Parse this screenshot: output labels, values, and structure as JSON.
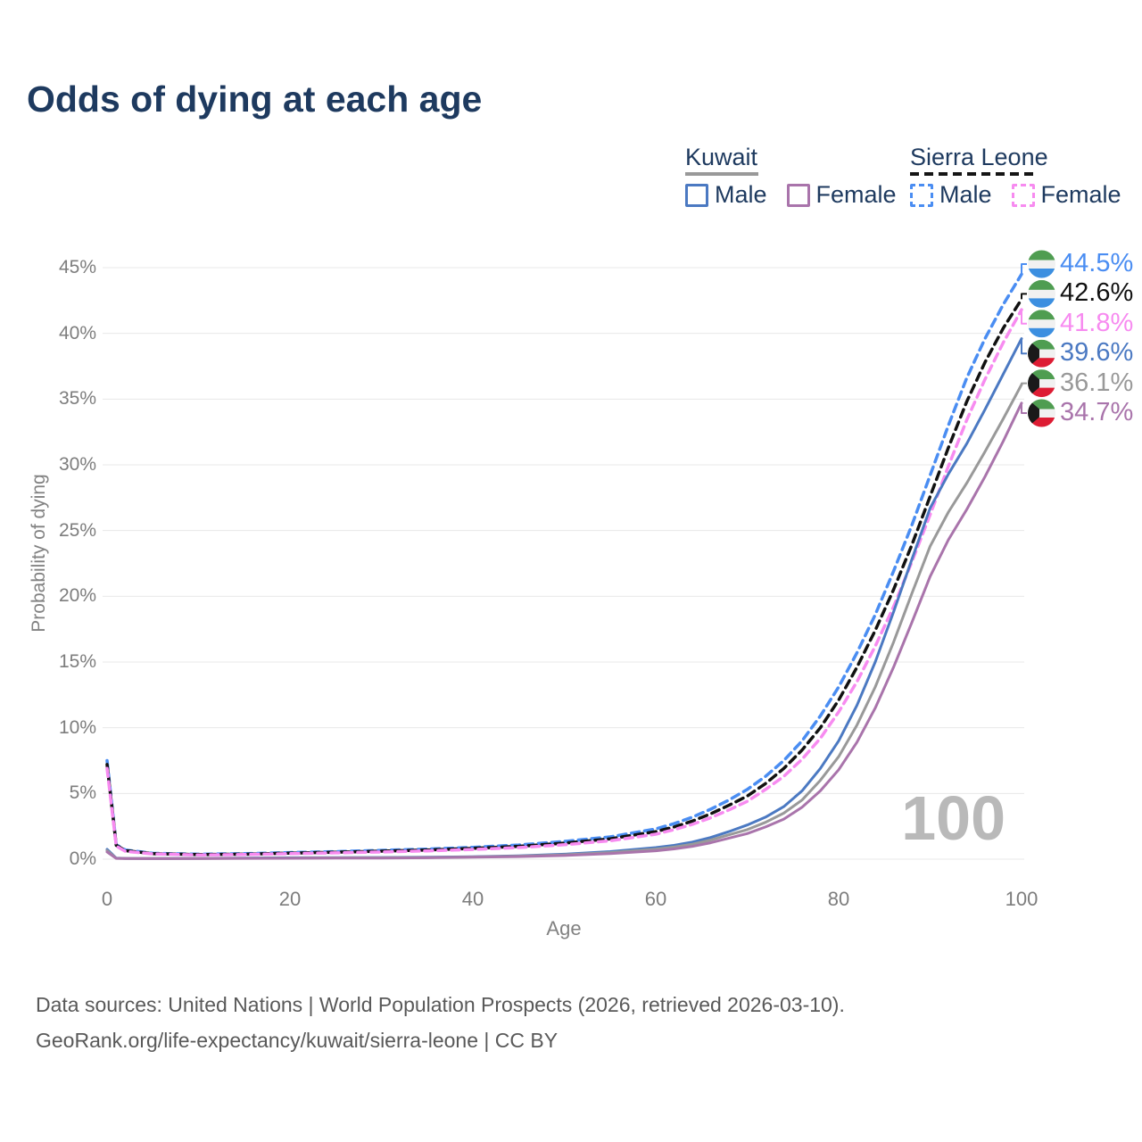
{
  "title": "Odds of dying at each age",
  "legend": {
    "groups": [
      {
        "country": "Kuwait",
        "line_style": "solid",
        "line_color": "#999999",
        "items": [
          {
            "label": "Male",
            "color": "#4b79c2"
          },
          {
            "label": "Female",
            "color": "#a974ab"
          }
        ]
      },
      {
        "country": "Sierra Leone",
        "line_style": "dashed",
        "line_color": "#1a1a1a",
        "items": [
          {
            "label": "Male",
            "color": "#4a8df2"
          },
          {
            "label": "Female",
            "color": "#f78bf0"
          }
        ]
      }
    ]
  },
  "chart_data": {
    "type": "line",
    "title": "Odds of dying at each age",
    "xlabel": "Age",
    "ylabel": "Probability of dying",
    "xlim": [
      0,
      100
    ],
    "ylim": [
      0,
      45
    ],
    "grid": true,
    "x_ticks": [
      "0",
      "20",
      "40",
      "60",
      "80",
      "100"
    ],
    "y_ticks": [
      "0%",
      "5%",
      "10%",
      "15%",
      "20%",
      "25%",
      "30%",
      "35%",
      "40%",
      "45%"
    ],
    "watermark": "100",
    "x": [
      0,
      1,
      2,
      5,
      10,
      15,
      20,
      25,
      30,
      35,
      40,
      45,
      50,
      55,
      60,
      62,
      64,
      66,
      68,
      70,
      72,
      74,
      76,
      78,
      80,
      82,
      84,
      86,
      88,
      90,
      92,
      94,
      96,
      98,
      100
    ],
    "series": [
      {
        "name": "Sierra Leone Male",
        "country": "Sierra Leone",
        "sex": "Male",
        "color": "#4a8df2",
        "line": "dashed",
        "flag": "sierra-leone",
        "end_label": "44.5%",
        "values": [
          7.5,
          1.1,
          0.7,
          0.45,
          0.38,
          0.42,
          0.5,
          0.58,
          0.67,
          0.77,
          0.9,
          1.08,
          1.35,
          1.7,
          2.3,
          2.7,
          3.2,
          3.8,
          4.5,
          5.3,
          6.3,
          7.5,
          9.0,
          10.9,
          13.1,
          15.7,
          18.6,
          21.9,
          25.4,
          29.2,
          33.0,
          36.6,
          39.6,
          42.2,
          44.5
        ]
      },
      {
        "name": "Sierra Leone Both sexes",
        "country": "Sierra Leone",
        "sex": "Both",
        "color": "#111111",
        "line": "dashed",
        "flag": "sierra-leone",
        "end_label": "42.6%",
        "values": [
          7.2,
          1.05,
          0.65,
          0.42,
          0.35,
          0.38,
          0.46,
          0.53,
          0.61,
          0.7,
          0.82,
          0.98,
          1.22,
          1.55,
          2.1,
          2.45,
          2.9,
          3.45,
          4.1,
          4.8,
          5.75,
          6.9,
          8.3,
          10.0,
          12.1,
          14.6,
          17.4,
          20.5,
          23.9,
          27.6,
          31.3,
          34.8,
          37.8,
          40.4,
          42.6
        ]
      },
      {
        "name": "Sierra Leone Female",
        "country": "Sierra Leone",
        "sex": "Female",
        "color": "#f78bf0",
        "line": "dashed",
        "flag": "sierra-leone",
        "end_label": "41.8%",
        "values": [
          6.9,
          1.0,
          0.6,
          0.4,
          0.32,
          0.35,
          0.42,
          0.48,
          0.55,
          0.63,
          0.74,
          0.88,
          1.1,
          1.4,
          1.9,
          2.25,
          2.65,
          3.15,
          3.75,
          4.4,
          5.3,
          6.3,
          7.6,
          9.2,
          11.2,
          13.5,
          16.2,
          19.2,
          22.6,
          26.2,
          29.9,
          33.4,
          36.5,
          39.3,
          41.8
        ]
      },
      {
        "name": "Kuwait Male",
        "country": "Kuwait",
        "sex": "Male",
        "color": "#4b79c2",
        "line": "solid",
        "flag": "kuwait",
        "end_label": "39.6%",
        "values": [
          0.75,
          0.08,
          0.06,
          0.05,
          0.06,
          0.08,
          0.11,
          0.12,
          0.13,
          0.15,
          0.19,
          0.26,
          0.38,
          0.58,
          0.88,
          1.05,
          1.3,
          1.65,
          2.1,
          2.6,
          3.2,
          4.0,
          5.2,
          6.9,
          9.0,
          11.7,
          15.0,
          18.8,
          22.8,
          26.7,
          29.3,
          31.6,
          34.2,
          36.9,
          39.6
        ]
      },
      {
        "name": "Kuwait Both sexes",
        "country": "Kuwait",
        "sex": "Both",
        "color": "#999999",
        "line": "solid",
        "flag": "kuwait",
        "end_label": "36.1%",
        "values": [
          0.65,
          0.07,
          0.05,
          0.045,
          0.05,
          0.07,
          0.09,
          0.1,
          0.11,
          0.13,
          0.17,
          0.23,
          0.33,
          0.5,
          0.76,
          0.92,
          1.14,
          1.45,
          1.85,
          2.25,
          2.8,
          3.5,
          4.5,
          6.0,
          7.8,
          10.2,
          13.1,
          16.5,
          20.2,
          23.8,
          26.4,
          28.6,
          31.0,
          33.5,
          36.1
        ]
      },
      {
        "name": "Kuwait Female",
        "country": "Kuwait",
        "sex": "Female",
        "color": "#a974ab",
        "line": "solid",
        "flag": "kuwait",
        "end_label": "34.7%",
        "values": [
          0.55,
          0.06,
          0.045,
          0.04,
          0.045,
          0.06,
          0.07,
          0.08,
          0.09,
          0.11,
          0.15,
          0.2,
          0.28,
          0.42,
          0.64,
          0.78,
          0.97,
          1.25,
          1.6,
          1.95,
          2.45,
          3.05,
          3.95,
          5.2,
          6.8,
          8.9,
          11.5,
          14.6,
          18.0,
          21.5,
          24.3,
          26.6,
          29.1,
          31.8,
          34.7
        ]
      }
    ],
    "flags": {
      "sierra-leone": {
        "bands": [
          "#4f9d51",
          "#f1f1f1",
          "#3c8fe0"
        ]
      },
      "kuwait": {
        "bands": [
          "#4f9d51",
          "#f1f1f1",
          "#dd1c33"
        ],
        "wedge": "#1a1a1a"
      }
    }
  },
  "footer": {
    "line1": "Data sources: United Nations | World Population Prospects (2026, retrieved 2026-03-10).",
    "line2": "GeoRank.org/life-expectancy/kuwait/sierra-leone | CC BY"
  }
}
